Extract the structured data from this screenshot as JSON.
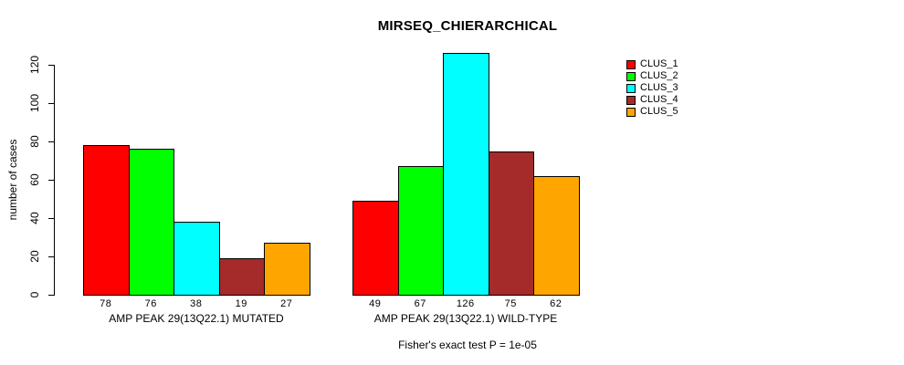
{
  "chart_data": {
    "type": "bar",
    "title": "MIRSEQ_CHIERARCHICAL",
    "ylabel": "number of cases",
    "xlabel": "",
    "ylim": [
      0,
      126
    ],
    "yticks": [
      0,
      20,
      40,
      60,
      80,
      100,
      120
    ],
    "grid": false,
    "legend_position": "top-right",
    "categories": [
      "AMP PEAK 29(13Q22.1) MUTATED",
      "AMP PEAK 29(13Q22.1) WILD-TYPE"
    ],
    "series": [
      {
        "name": "CLUS_1",
        "color": "#FF0000",
        "values": [
          78,
          49
        ]
      },
      {
        "name": "CLUS_2",
        "color": "#00FF00",
        "values": [
          76,
          67
        ]
      },
      {
        "name": "CLUS_3",
        "color": "#00FFFF",
        "values": [
          38,
          126
        ]
      },
      {
        "name": "CLUS_4",
        "color": "#A52A2A",
        "values": [
          19,
          75
        ]
      },
      {
        "name": "CLUS_5",
        "color": "#FFA500",
        "values": [
          27,
          62
        ]
      }
    ],
    "bar_value_labels": {
      "AMP PEAK 29(13Q22.1) MUTATED": [
        78,
        76,
        38,
        19,
        27
      ],
      "AMP PEAK 29(13Q22.1) WILD-TYPE": [
        49,
        67,
        126,
        75,
        62
      ]
    },
    "annotation": "Fisher's exact test P = 1e-05",
    "axis_color": "#000000",
    "bar_border_color": "#000000",
    "background_color": "#FFFFFF"
  }
}
